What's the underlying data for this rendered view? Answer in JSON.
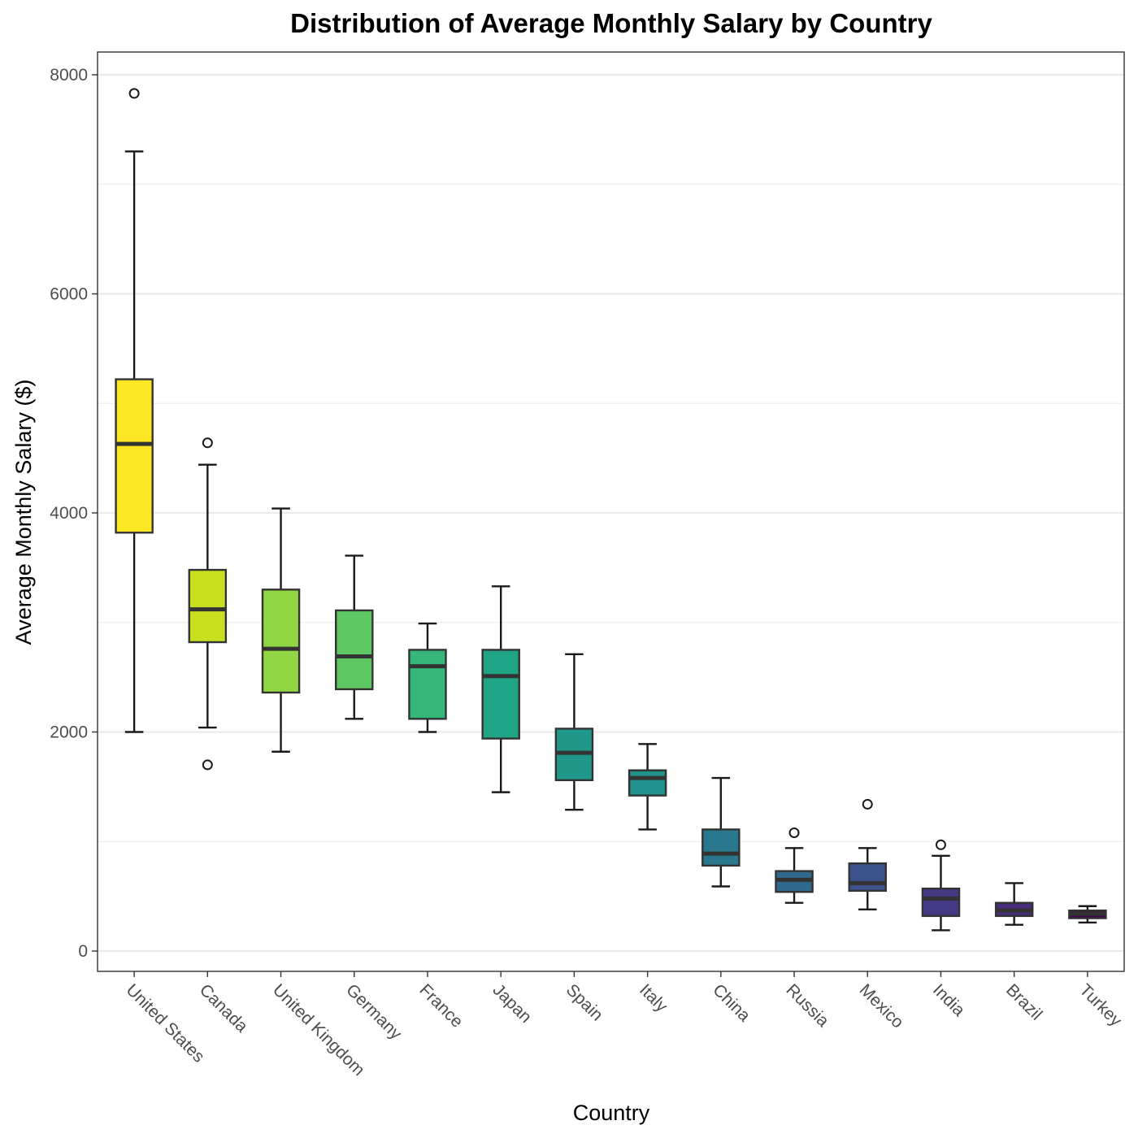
{
  "chart_data": {
    "type": "box",
    "title": "Distribution of Average Monthly Salary by Country",
    "xlabel": "Country",
    "ylabel": "Average Monthly Salary ($)",
    "ylim": [
      -190,
      8200
    ],
    "yticks": [
      0,
      2000,
      4000,
      6000,
      8000
    ],
    "grid": true,
    "legend": "none",
    "categories": [
      "United States",
      "Canada",
      "United Kingdom",
      "Germany",
      "France",
      "Japan",
      "Spain",
      "Italy",
      "China",
      "Russia",
      "Mexico",
      "India",
      "Brazil",
      "Turkey"
    ],
    "boxes": [
      {
        "category": "United States",
        "whisker_low": 2000,
        "q1": 3820,
        "median": 4630,
        "q3": 5220,
        "whisker_high": 7300,
        "outliers": [
          7830
        ],
        "color": "#fde725"
      },
      {
        "category": "Canada",
        "whisker_low": 2040,
        "q1": 2820,
        "median": 3120,
        "q3": 3480,
        "whisker_high": 4440,
        "outliers": [
          4640,
          1700
        ],
        "color": "#c8e020"
      },
      {
        "category": "United Kingdom",
        "whisker_low": 1820,
        "q1": 2360,
        "median": 2760,
        "q3": 3300,
        "whisker_high": 4040,
        "outliers": [],
        "color": "#90d743"
      },
      {
        "category": "Germany",
        "whisker_low": 2120,
        "q1": 2390,
        "median": 2690,
        "q3": 3110,
        "whisker_high": 3610,
        "outliers": [],
        "color": "#5ec962"
      },
      {
        "category": "France",
        "whisker_low": 2000,
        "q1": 2120,
        "median": 2600,
        "q3": 2750,
        "whisker_high": 2990,
        "outliers": [],
        "color": "#35b779"
      },
      {
        "category": "Japan",
        "whisker_low": 1450,
        "q1": 1940,
        "median": 2510,
        "q3": 2750,
        "whisker_high": 3330,
        "outliers": [],
        "color": "#20a486"
      },
      {
        "category": "Spain",
        "whisker_low": 1290,
        "q1": 1560,
        "median": 1810,
        "q3": 2030,
        "whisker_high": 2710,
        "outliers": [],
        "color": "#1f988b"
      },
      {
        "category": "Italy",
        "whisker_low": 1110,
        "q1": 1420,
        "median": 1580,
        "q3": 1650,
        "whisker_high": 1890,
        "outliers": [],
        "color": "#21918c"
      },
      {
        "category": "China",
        "whisker_low": 590,
        "q1": 780,
        "median": 890,
        "q3": 1110,
        "whisker_high": 1580,
        "outliers": [],
        "color": "#2a788e"
      },
      {
        "category": "Russia",
        "whisker_low": 440,
        "q1": 540,
        "median": 650,
        "q3": 730,
        "whisker_high": 940,
        "outliers": [
          1080
        ],
        "color": "#31688e"
      },
      {
        "category": "Mexico",
        "whisker_low": 380,
        "q1": 550,
        "median": 620,
        "q3": 800,
        "whisker_high": 940,
        "outliers": [
          1340
        ],
        "color": "#3b528b"
      },
      {
        "category": "India",
        "whisker_low": 190,
        "q1": 320,
        "median": 480,
        "q3": 570,
        "whisker_high": 870,
        "outliers": [
          970
        ],
        "color": "#443983"
      },
      {
        "category": "Brazil",
        "whisker_low": 240,
        "q1": 320,
        "median": 370,
        "q3": 440,
        "whisker_high": 620,
        "outliers": [],
        "color": "#472d7b"
      },
      {
        "category": "Turkey",
        "whisker_low": 260,
        "q1": 300,
        "median": 340,
        "q3": 370,
        "whisker_high": 410,
        "outliers": [],
        "color": "#440154"
      }
    ]
  }
}
